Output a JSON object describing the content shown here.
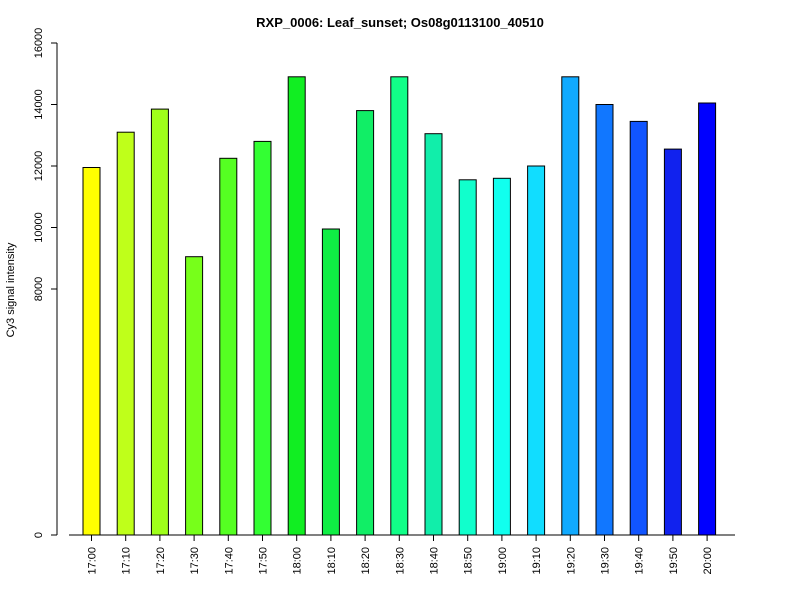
{
  "chart_data": {
    "type": "bar",
    "title": "RXP_0006: Leaf_sunset; Os08g0113100_40510",
    "xlabel": "",
    "ylabel": "Cy3 signal intensity",
    "ylim": [
      0,
      16000
    ],
    "yticks": [
      0,
      8000,
      10000,
      12000,
      14000,
      16000
    ],
    "ytick_labels": [
      "0",
      "8000",
      "10000",
      "12000",
      "14000",
      "16000"
    ],
    "categories": [
      "17:00",
      "17:10",
      "17:20",
      "17:30",
      "17:40",
      "17:50",
      "18:00",
      "18:10",
      "18:20",
      "18:30",
      "18:40",
      "18:50",
      "19:00",
      "19:10",
      "19:20",
      "19:30",
      "19:40",
      "19:50",
      "20:00"
    ],
    "values": [
      11950,
      13100,
      13850,
      9050,
      12250,
      12800,
      14900,
      9950,
      13800,
      14900,
      13050,
      11550,
      11600,
      12000,
      14900,
      14000,
      13450,
      12550,
      14050
    ],
    "colors": [
      "#FFFF00",
      "#BFFF1A",
      "#9FFF1A",
      "#77FF1A",
      "#55FF22",
      "#33FF33",
      "#11EE22",
      "#0FEE44",
      "#11EE66",
      "#11FF88",
      "#11EEAA",
      "#11FFCC",
      "#11FFEE",
      "#11DDFF",
      "#11AAFF",
      "#1177FF",
      "#1155FF",
      "#1122EE",
      "#0000FF"
    ],
    "grid": false,
    "legend": "none"
  }
}
